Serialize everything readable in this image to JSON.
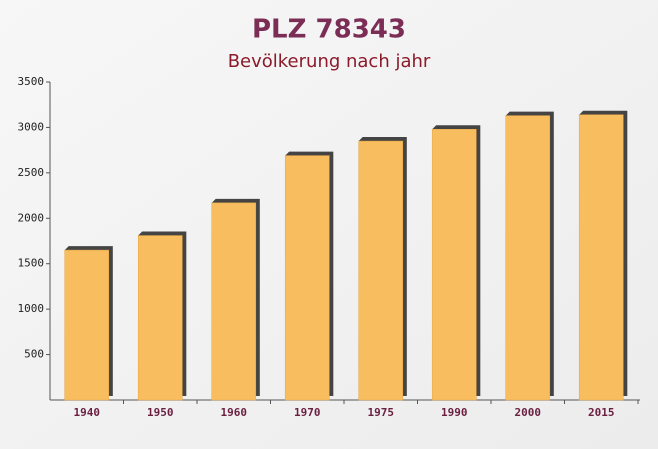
{
  "chart_data": {
    "type": "bar",
    "title": "PLZ 78343",
    "subtitle": "Bevölkerung nach jahr",
    "categories": [
      "1940",
      "1950",
      "1960",
      "1970",
      "1975",
      "1990",
      "2000",
      "2015"
    ],
    "values": [
      1650,
      1810,
      2170,
      2690,
      2850,
      2980,
      3130,
      3140
    ],
    "color": "#f7bd5e",
    "ylim": [
      0,
      3500
    ],
    "yticks": [
      500,
      1000,
      1500,
      2000,
      2500,
      3000,
      3500
    ],
    "grid": false
  }
}
